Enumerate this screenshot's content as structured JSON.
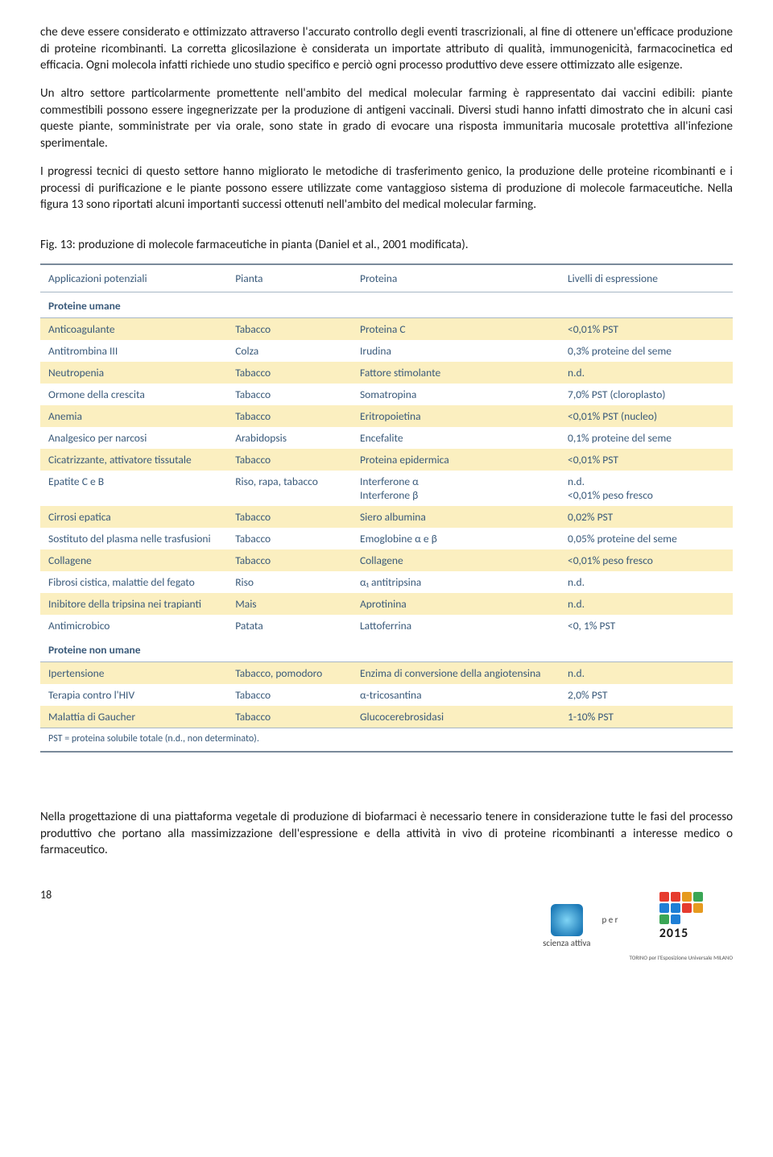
{
  "paragraphs": {
    "p1": "che deve essere considerato e ottimizzato attraverso l'accurato controllo degli eventi trascrizionali, al fine di ottenere un'efficace produzione di proteine ricombinanti.  La corretta glicosilazione è considerata un importate attributo di qualità, immunogenicità, farmacocinetica ed efficacia. Ogni molecola infatti richiede uno studio specifico e perciò ogni processo produttivo deve essere ottimizzato alle esigenze.",
    "p2": "Un altro settore particolarmente promettente nell'ambito del medical molecular farming è rappresentato dai vaccini edibili: piante commestibili possono essere ingegnerizzate per la produzione di antigeni vaccinali. Diversi studi hanno infatti dimostrato che in alcuni casi queste piante, somministrate per via orale, sono state in grado di evocare una risposta immunitaria mucosale protettiva all'infezione sperimentale.",
    "p3": "I progressi tecnici di questo settore hanno migliorato le metodiche di trasferimento genico, la produzione delle proteine ricombinanti e i processi di purificazione e le piante possono essere utilizzate come vantaggioso sistema di produzione di molecole farmaceutiche. Nella figura 13 sono riportati alcuni importanti successi ottenuti nell'ambito del medical molecular farming.",
    "p4": "Nella progettazione di una piattaforma vegetale di produzione di biofarmaci è necessario tenere in considerazione tutte le fasi del processo produttivo che portano alla massimizzazione dell'espressione e della attività in vivo di proteine ricombinanti a interesse medico o farmaceutico."
  },
  "figure_caption": "Fig. 13: produzione di molecole farmaceutiche in pianta (Daniel et al., 2001 modificata).",
  "table": {
    "headers": [
      "Applicazioni potenziali",
      "Pianta",
      "Proteina",
      "Livelli di espressione"
    ],
    "header_color": "#3a5a7a",
    "row_yellow": "#fbefc0",
    "row_white": "#ffffff",
    "border_color": "#7a8a9a",
    "text_color": "#3a5a7a",
    "section1": "Proteine umane",
    "rows1": [
      [
        "Anticoagulante",
        "Tabacco",
        "Proteina C",
        "<0,01% PST"
      ],
      [
        "Antitrombina III",
        "Colza",
        "Irudina",
        "0,3% proteine del seme"
      ],
      [
        "Neutropenia",
        "Tabacco",
        "Fattore stimolante",
        "n.d."
      ],
      [
        "Ormone della crescita",
        "Tabacco",
        "Somatropina",
        "7,0% PST (cloroplasto)"
      ],
      [
        "Anemia",
        "Tabacco",
        "Eritropoietina",
        "<0,01% PST (nucleo)"
      ],
      [
        "Analgesico per narcosi",
        "Arabidopsis",
        "Encefalite",
        "0,1% proteine del seme"
      ],
      [
        "Cicatrizzante, attivatore tissutale",
        "Tabacco",
        "Proteina epidermica",
        "<0,01% PST"
      ],
      [
        "Epatite C e B",
        "Riso, rapa, tabacco",
        "Interferone α\nInterferone β",
        "n.d.\n<0,01% peso fresco"
      ],
      [
        "Cirrosi epatica",
        "Tabacco",
        "Siero albumina",
        "0,02% PST"
      ],
      [
        "Sostituto del plasma nelle trasfusioni",
        "Tabacco",
        "Emoglobine α e β",
        "0,05% proteine del seme"
      ],
      [
        "Collagene",
        "Tabacco",
        "Collagene",
        "<0,01% peso fresco"
      ],
      [
        "Fibrosi cistica, malattie del fegato",
        "Riso",
        "α₁ antitripsina",
        "n.d."
      ],
      [
        "Inibitore della tripsina nei trapianti",
        "Mais",
        "Aprotinina",
        "n.d."
      ],
      [
        "Antimicrobico",
        "Patata",
        "Lattoferrina",
        "<0, 1% PST"
      ]
    ],
    "section2": "Proteine non umane",
    "rows2": [
      [
        "Ipertensione",
        "Tabacco, pomodoro",
        "Enzima di conversione della angiotensina",
        "n.d."
      ],
      [
        "Terapia contro l'HIV",
        "Tabacco",
        "α-tricosantina",
        "2,0% PST"
      ],
      [
        "Malattia di Gaucher",
        "Tabacco",
        "Glucocerebrosidasi",
        "1-10% PST"
      ]
    ],
    "footnote": "PST = proteina solubile totale (n.d., non determinato)."
  },
  "page_number": "18",
  "logos": {
    "scienza_label": "scienza attiva",
    "per": "p e r",
    "expo_colors": [
      "#e63c2f",
      "#e63c2f",
      "#e69a1f",
      "#3aa655",
      "#1f7fd6",
      "#1f7fd6",
      "#e63c2f",
      "#e69a1f",
      "#3aa655",
      "#1f7fd6",
      "#ffffff",
      "#ffffff"
    ],
    "expo_year": "2015",
    "expo_sub": "TORINO per l'Esposizione Universale MILANO"
  }
}
